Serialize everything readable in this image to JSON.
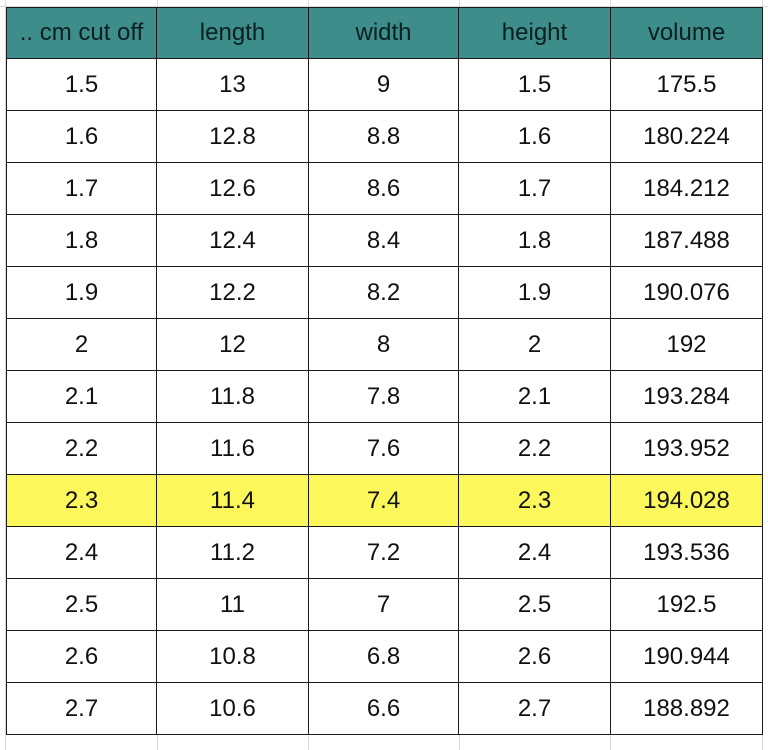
{
  "sheet": {
    "columns": [
      ".. cm cut off",
      "length",
      "width",
      "height",
      "volume"
    ],
    "highlight_color": "#fcf75a",
    "header_color": "#3d8d8b",
    "rows": [
      {
        "cut": "1.5",
        "length": "13",
        "width": "9",
        "height": "1.5",
        "volume": "175.5",
        "highlighted": false
      },
      {
        "cut": "1.6",
        "length": "12.8",
        "width": "8.8",
        "height": "1.6",
        "volume": "180.224",
        "highlighted": false
      },
      {
        "cut": "1.7",
        "length": "12.6",
        "width": "8.6",
        "height": "1.7",
        "volume": "184.212",
        "highlighted": false
      },
      {
        "cut": "1.8",
        "length": "12.4",
        "width": "8.4",
        "height": "1.8",
        "volume": "187.488",
        "highlighted": false
      },
      {
        "cut": "1.9",
        "length": "12.2",
        "width": "8.2",
        "height": "1.9",
        "volume": "190.076",
        "highlighted": false
      },
      {
        "cut": "2",
        "length": "12",
        "width": "8",
        "height": "2",
        "volume": "192",
        "highlighted": false
      },
      {
        "cut": "2.1",
        "length": "11.8",
        "width": "7.8",
        "height": "2.1",
        "volume": "193.284",
        "highlighted": false
      },
      {
        "cut": "2.2",
        "length": "11.6",
        "width": "7.6",
        "height": "2.2",
        "volume": "193.952",
        "highlighted": false
      },
      {
        "cut": "2.3",
        "length": "11.4",
        "width": "7.4",
        "height": "2.3",
        "volume": "194.028",
        "highlighted": true
      },
      {
        "cut": "2.4",
        "length": "11.2",
        "width": "7.2",
        "height": "2.4",
        "volume": "193.536",
        "highlighted": false
      },
      {
        "cut": "2.5",
        "length": "11",
        "width": "7",
        "height": "2.5",
        "volume": "192.5",
        "highlighted": false
      },
      {
        "cut": "2.6",
        "length": "10.8",
        "width": "6.8",
        "height": "2.6",
        "volume": "190.944",
        "highlighted": false
      },
      {
        "cut": "2.7",
        "length": "10.6",
        "width": "6.6",
        "height": "2.7",
        "volume": "188.892",
        "highlighted": false
      }
    ]
  }
}
